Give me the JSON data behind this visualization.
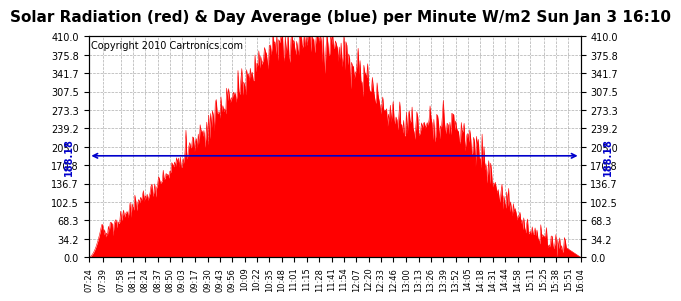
{
  "title": "Solar Radiation (red) & Day Average (blue) per Minute W/m2 Sun Jan 3 16:10",
  "copyright": "Copyright 2010 Cartronics.com",
  "avg_value": 188.18,
  "ymax": 410.0,
  "yticks": [
    0.0,
    34.2,
    68.3,
    102.5,
    136.7,
    170.8,
    205.0,
    239.2,
    273.3,
    307.5,
    341.7,
    375.8,
    410.0
  ],
  "bar_color": "#FF0000",
  "avg_line_color": "#0000CC",
  "background_color": "#FFFFFF",
  "grid_color": "#999999",
  "title_fontsize": 11,
  "copyright_fontsize": 7,
  "avg_label_fontsize": 7,
  "tick_fontsize": 7,
  "x_tick_fontsize": 6,
  "x_labels": [
    "07:24",
    "07:39",
    "07:58",
    "08:11",
    "08:24",
    "08:37",
    "08:50",
    "09:03",
    "09:17",
    "09:30",
    "09:43",
    "09:56",
    "10:09",
    "10:22",
    "10:35",
    "10:48",
    "11:01",
    "11:15",
    "11:28",
    "11:41",
    "11:54",
    "12:07",
    "12:20",
    "12:33",
    "12:46",
    "13:00",
    "13:13",
    "13:26",
    "13:39",
    "13:52",
    "14:05",
    "14:18",
    "14:31",
    "14:44",
    "14:58",
    "15:11",
    "15:25",
    "15:38",
    "15:51",
    "16:04"
  ],
  "peak_minute": 237,
  "n_points": 521,
  "avg_marker_size": 4
}
